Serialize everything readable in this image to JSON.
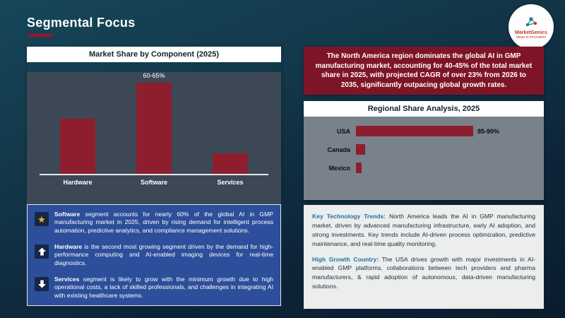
{
  "slide": {
    "title": "Segmental Focus"
  },
  "logo": {
    "brand": "MarketGenics",
    "tagline": "Ideas to Innovation"
  },
  "colors": {
    "accent_red": "#a51227",
    "bar_maroon": "#8e1e2e",
    "panel_blue": "#2d4f9b",
    "callout_maroon": "#7e1527",
    "lead_blue": "#2173a6"
  },
  "chart_data": [
    {
      "type": "bar",
      "orientation": "vertical",
      "title": "Market Share by Component (2025)",
      "categories": [
        "Hardware",
        "Software",
        "Services"
      ],
      "values": [
        38,
        62.5,
        14
      ],
      "value_labels": [
        null,
        "60-65%",
        null
      ],
      "ylim": [
        0,
        70
      ],
      "ylabel": "",
      "xlabel": "",
      "grid": false,
      "bar_color": "#8e1e2e"
    },
    {
      "type": "bar",
      "orientation": "horizontal",
      "title": "Regional Share Analysis, 2025",
      "categories": [
        "USA",
        "Canada",
        "Mexico"
      ],
      "values": [
        87.5,
        7,
        4
      ],
      "value_labels": [
        "85-90%",
        null,
        null
      ],
      "xlim": [
        0,
        100
      ],
      "ylabel": "",
      "xlabel": "",
      "grid": false,
      "bar_color": "#8e1e2e"
    }
  ],
  "insights": {
    "items": [
      {
        "icon": "star-icon",
        "lead": "Software",
        "text": " segment accounts for nearly 60% of the global AI in GMP manufacturing market in 2025, driven by rising demand for intelligent process automation, predictive analytics, and compliance management solutions."
      },
      {
        "icon": "up-arrow-icon",
        "lead": "Hardware",
        "text": " is the second most growing segment driven by the demand for high-performance computing and AI-enabled imaging devices for real-time diagnostics."
      },
      {
        "icon": "down-arrow-icon",
        "lead": "Services",
        "text": " segment is likely to grow with the minimum growth due to high operational costs, a lack of skilled professionals, and challenges in integrating AI with existing healthcare systems."
      }
    ]
  },
  "callout": {
    "text": "The North America region dominates the global AI in GMP manufacturing market, accounting for 40-45% of the total market share in 2025, with projected CAGR of over 23% from 2026 to 2035, significantly outpacing global growth rates."
  },
  "region_notes": {
    "paragraphs": [
      {
        "lead": "Key Technology Trends:",
        "text": " North America leads the AI in GMP manufacturing market, driven by advanced manufacturing infrastructure, early AI adoption, and strong investments. Key trends include AI-driven process optimization, predictive maintenance, and real-time quality monitoring."
      },
      {
        "lead": "High Growth Country:",
        "text": " The USA drives growth with major investments in AI-enabled GMP platforms, collaborations between tech providers and pharma manufacturers, & rapid adoption of autonomous, data-driven manufacturing solutions."
      }
    ]
  }
}
